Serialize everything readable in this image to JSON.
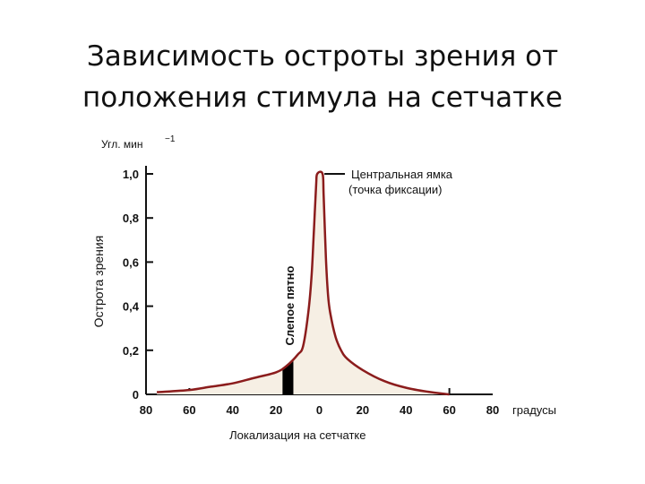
{
  "slide": {
    "title_line1": "Зависимость остроты зрения от",
    "title_line2": "положения стимула на сетчатке"
  },
  "chart_data": {
    "type": "line",
    "title": "Зависимость остроты зрения от положения стимула на сетчатке",
    "xlabel": "Локализация на сетчатке",
    "xunit": "градусы",
    "ylabel": "Острота зрения",
    "yunit": "Угл. мин",
    "yunit_exp": "−1",
    "xlim": [
      -80,
      80
    ],
    "ylim": [
      0,
      1.0
    ],
    "xticks": [
      -80,
      -60,
      -40,
      -20,
      0,
      20,
      40,
      60,
      80
    ],
    "xtick_labels": [
      "80",
      "60",
      "40",
      "20",
      "0",
      "20",
      "40",
      "60",
      "80"
    ],
    "yticks": [
      0,
      0.2,
      0.4,
      0.6,
      0.8,
      1.0
    ],
    "ytick_labels": [
      "0",
      "0,2",
      "0,4",
      "0,6",
      "0,8",
      "1,0"
    ],
    "grid": false,
    "line_color": "#8b1c1c",
    "blind_spot_color": "#000000",
    "series": [
      {
        "x": [
          -75,
          -60,
          -50,
          -40,
          -30,
          -20,
          -15,
          -10,
          -7.5,
          -5,
          -3.5,
          -2.5,
          -1.5,
          -1,
          1.5,
          2,
          3,
          4,
          5,
          7.5,
          10,
          13,
          20,
          30,
          40,
          50,
          60
        ],
        "y": [
          0.01,
          0.02,
          0.035,
          0.05,
          0.075,
          0.1,
          0.13,
          0.18,
          0.22,
          0.38,
          0.55,
          0.75,
          0.95,
          1.0,
          1.0,
          0.9,
          0.62,
          0.45,
          0.37,
          0.26,
          0.2,
          0.16,
          0.11,
          0.06,
          0.03,
          0.012,
          0.0
        ]
      }
    ],
    "annotations": [
      {
        "text_line1": "Центральная ямка",
        "text_line2": "(точка фиксации)",
        "x": 0,
        "y": 1.0
      },
      {
        "text": "Слепое пятно",
        "x_range": [
          -17,
          -12
        ]
      }
    ]
  }
}
